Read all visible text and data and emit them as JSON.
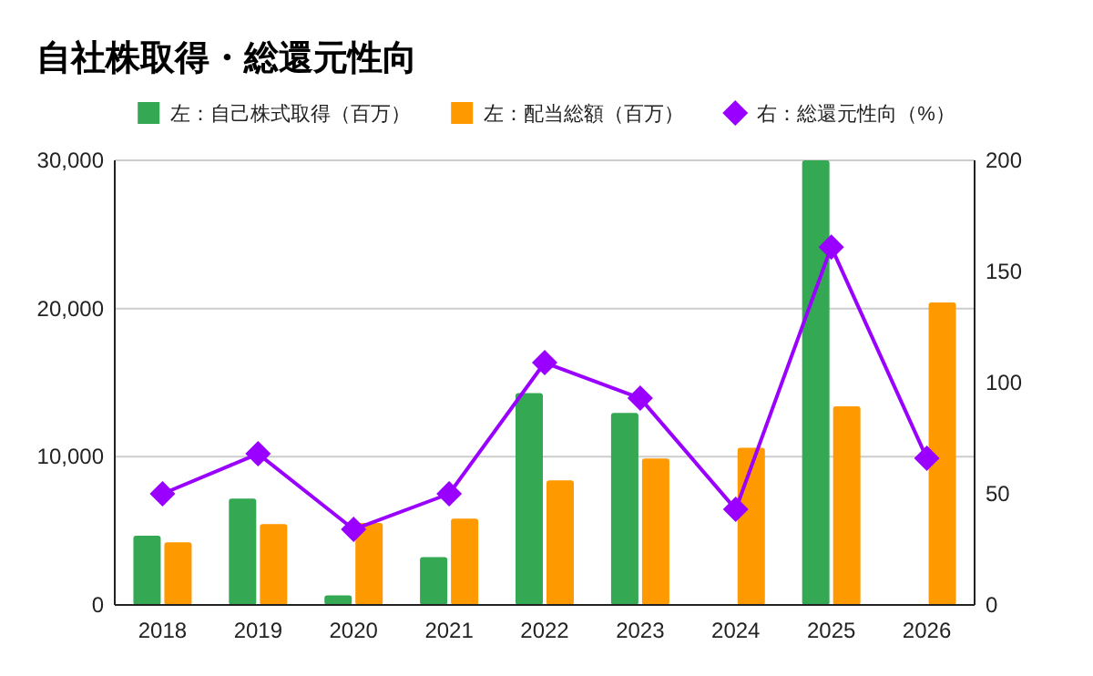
{
  "chart_data": {
    "type": "bar",
    "title": "自社株取得・総還元性向",
    "categories": [
      "2018",
      "2019",
      "2020",
      "2021",
      "2022",
      "2023",
      "2024",
      "2025",
      "2026"
    ],
    "series": [
      {
        "name": "左：自己株式取得（百万）",
        "color": "#34a853",
        "values": [
          4670,
          7170,
          650,
          3230,
          14300,
          12950,
          null,
          30000,
          null
        ]
      },
      {
        "name": "左：配当総額（百万）",
        "color": "#ff9900",
        "values": [
          4220,
          5450,
          5530,
          5820,
          8400,
          9880,
          10610,
          13400,
          20410
        ]
      },
      {
        "name": "右：総還元性向（%）",
        "color": "#9900ff",
        "type": "line",
        "axis": "y2",
        "marker": "diamond",
        "values": [
          50,
          68,
          34,
          50,
          109,
          93,
          43,
          161,
          66
        ]
      }
    ],
    "ylim": [
      0,
      30000
    ],
    "yticks": [
      {
        "value": 0,
        "label": "0"
      },
      {
        "value": 10000,
        "label": "10,000"
      },
      {
        "value": 20000,
        "label": "20,000"
      },
      {
        "value": 30000,
        "label": "30,000"
      }
    ],
    "y2lim": [
      0,
      200
    ],
    "y2ticks": [
      0,
      50,
      100,
      150,
      200
    ],
    "grid": "y",
    "legend": "top"
  }
}
